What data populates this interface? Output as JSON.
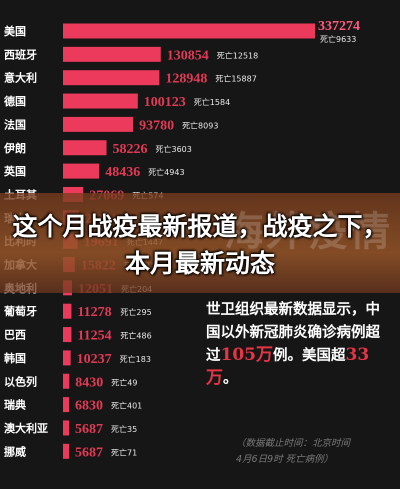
{
  "chart_data": {
    "type": "bar",
    "orientation": "horizontal",
    "death_prefix": "死亡",
    "bar_color": "#ec3a5c",
    "value_color": "#e23a55",
    "top_value_color": "#ff5a82",
    "rows": [
      {
        "country": "美国",
        "cases": 337274,
        "deaths": 9633
      },
      {
        "country": "西班牙",
        "cases": 130854,
        "deaths": 12518
      },
      {
        "country": "意大利",
        "cases": 128948,
        "deaths": 15887
      },
      {
        "country": "德国",
        "cases": 100123,
        "deaths": 1584
      },
      {
        "country": "法国",
        "cases": 93780,
        "deaths": 8093
      },
      {
        "country": "伊朗",
        "cases": 58226,
        "deaths": 3603
      },
      {
        "country": "英国",
        "cases": 48436,
        "deaths": 4943
      },
      {
        "country": "土耳其",
        "cases": 27069,
        "deaths": 574
      },
      {
        "country": "瑞士",
        "cases": 21100,
        "deaths": 715
      },
      {
        "country": "比利时",
        "cases": 19691,
        "deaths": 1447
      },
      {
        "country": "加拿大",
        "cases": 15822,
        "deaths": 277
      },
      {
        "country": "奥地利",
        "cases": 12051,
        "deaths": 204
      },
      {
        "country": "葡萄牙",
        "cases": 11278,
        "deaths": 295
      },
      {
        "country": "巴西",
        "cases": 11254,
        "deaths": 486
      },
      {
        "country": "韩国",
        "cases": 10237,
        "deaths": 183
      },
      {
        "country": "以色列",
        "cases": 8430,
        "deaths": 49
      },
      {
        "country": "瑞典",
        "cases": 6830,
        "deaths": 401
      },
      {
        "country": "澳大利亚",
        "cases": 5687,
        "deaths": 35
      },
      {
        "country": "挪威",
        "cases": 5687,
        "deaths": 71
      }
    ]
  },
  "overlay": {
    "headline": "这个月战疫最新报道，战疫之下，本月最新动态",
    "ghost_text": "海外疫情"
  },
  "note": {
    "part1": "世卫组织最新数据显示，中国以外新冠肺炎确诊病例超过",
    "highlight1": "105万",
    "part2": "例。美国超",
    "highlight2": "33万",
    "part3": "。"
  },
  "source": {
    "line1": "（数据截止时间：北京时间",
    "line2": "4月6日9时 死亡病例）"
  }
}
